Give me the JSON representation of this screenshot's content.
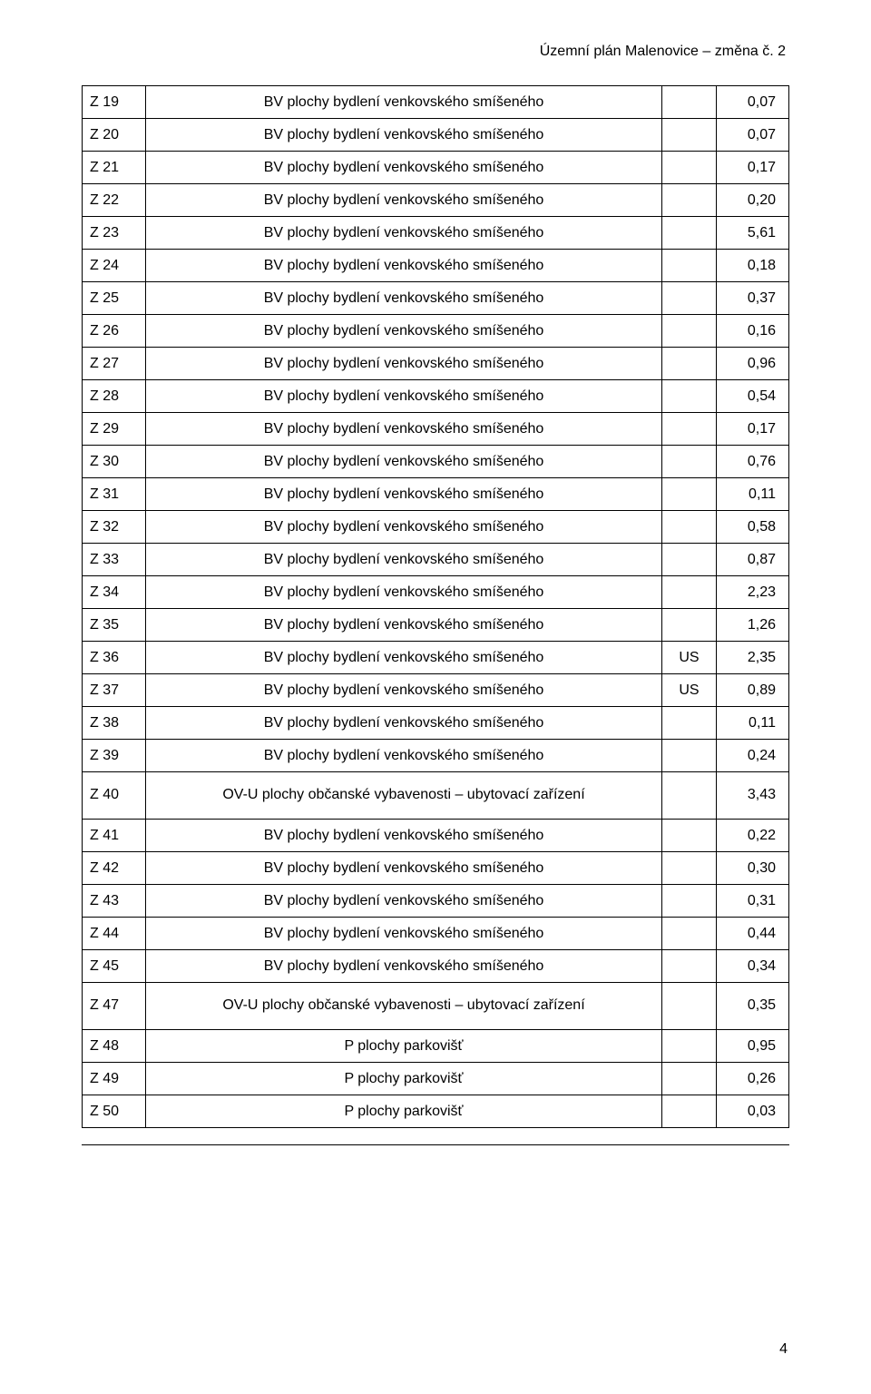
{
  "header": {
    "title": "Územní plán Malenovice – změna č. 2"
  },
  "rows": [
    {
      "code": "Z 19",
      "desc": "BV plochy bydlení venkovského smíšeného",
      "us": "",
      "val": "0,07",
      "tall": false
    },
    {
      "code": "Z 20",
      "desc": "BV plochy bydlení venkovského smíšeného",
      "us": "",
      "val": "0,07",
      "tall": false
    },
    {
      "code": "Z 21",
      "desc": "BV plochy bydlení venkovského smíšeného",
      "us": "",
      "val": "0,17",
      "tall": false
    },
    {
      "code": "Z 22",
      "desc": "BV plochy bydlení venkovského smíšeného",
      "us": "",
      "val": "0,20",
      "tall": false
    },
    {
      "code": "Z 23",
      "desc": "BV plochy bydlení venkovského smíšeného",
      "us": "",
      "val": "5,61",
      "tall": false
    },
    {
      "code": "Z 24",
      "desc": "BV plochy bydlení venkovského smíšeného",
      "us": "",
      "val": "0,18",
      "tall": false
    },
    {
      "code": "Z 25",
      "desc": "BV plochy bydlení venkovského smíšeného",
      "us": "",
      "val": "0,37",
      "tall": false
    },
    {
      "code": "Z 26",
      "desc": "BV plochy bydlení venkovského smíšeného",
      "us": "",
      "val": "0,16",
      "tall": false
    },
    {
      "code": "Z 27",
      "desc": "BV plochy bydlení venkovského smíšeného",
      "us": "",
      "val": "0,96",
      "tall": false
    },
    {
      "code": "Z 28",
      "desc": "BV plochy bydlení venkovského smíšeného",
      "us": "",
      "val": "0,54",
      "tall": false
    },
    {
      "code": "Z 29",
      "desc": "BV plochy bydlení venkovského smíšeného",
      "us": "",
      "val": "0,17",
      "tall": false
    },
    {
      "code": "Z 30",
      "desc": "BV plochy bydlení venkovského smíšeného",
      "us": "",
      "val": "0,76",
      "tall": false
    },
    {
      "code": "Z 31",
      "desc": "BV plochy bydlení venkovského smíšeného",
      "us": "",
      "val": "0,11",
      "tall": false
    },
    {
      "code": "Z 32",
      "desc": "BV plochy bydlení venkovského smíšeného",
      "us": "",
      "val": "0,58",
      "tall": false
    },
    {
      "code": "Z 33",
      "desc": "BV plochy bydlení venkovského smíšeného",
      "us": "",
      "val": "0,87",
      "tall": false
    },
    {
      "code": "Z 34",
      "desc": "BV plochy bydlení venkovského smíšeného",
      "us": "",
      "val": "2,23",
      "tall": false
    },
    {
      "code": "Z 35",
      "desc": "BV plochy bydlení venkovského smíšeného",
      "us": "",
      "val": "1,26",
      "tall": false
    },
    {
      "code": "Z 36",
      "desc": "BV plochy bydlení venkovského smíšeného",
      "us": "US",
      "val": "2,35",
      "tall": false
    },
    {
      "code": "Z 37",
      "desc": "BV plochy bydlení venkovského smíšeného",
      "us": "US",
      "val": "0,89",
      "tall": false
    },
    {
      "code": "Z 38",
      "desc": "BV plochy bydlení venkovského smíšeného",
      "us": "",
      "val": "0,11",
      "tall": false
    },
    {
      "code": "Z 39",
      "desc": "BV plochy bydlení venkovského smíšeného",
      "us": "",
      "val": "0,24",
      "tall": false
    },
    {
      "code": "Z 40",
      "desc": "OV-U plochy občanské vybavenosti – ubytovací zařízení",
      "us": "",
      "val": "3,43",
      "tall": true
    },
    {
      "code": "Z 41",
      "desc": "BV plochy bydlení venkovského smíšeného",
      "us": "",
      "val": "0,22",
      "tall": false
    },
    {
      "code": "Z 42",
      "desc": "BV plochy bydlení venkovského smíšeného",
      "us": "",
      "val": "0,30",
      "tall": false
    },
    {
      "code": "Z 43",
      "desc": "BV plochy bydlení venkovského smíšeného",
      "us": "",
      "val": "0,31",
      "tall": false
    },
    {
      "code": "Z 44",
      "desc": "BV plochy bydlení venkovského smíšeného",
      "us": "",
      "val": "0,44",
      "tall": false
    },
    {
      "code": "Z 45",
      "desc": "BV plochy bydlení venkovského smíšeného",
      "us": "",
      "val": "0,34",
      "tall": false
    },
    {
      "code": "Z 47",
      "desc": "OV-U plochy občanské vybavenosti – ubytovací zařízení",
      "us": "",
      "val": "0,35",
      "tall": true
    },
    {
      "code": "Z 48",
      "desc": "P plochy parkovišť",
      "us": "",
      "val": "0,95",
      "tall": false
    },
    {
      "code": "Z 49",
      "desc": "P plochy parkovišť",
      "us": "",
      "val": "0,26",
      "tall": false
    },
    {
      "code": "Z 50",
      "desc": "P plochy parkovišť",
      "us": "",
      "val": "0,03",
      "tall": false
    }
  ],
  "footer": {
    "page": "4"
  }
}
